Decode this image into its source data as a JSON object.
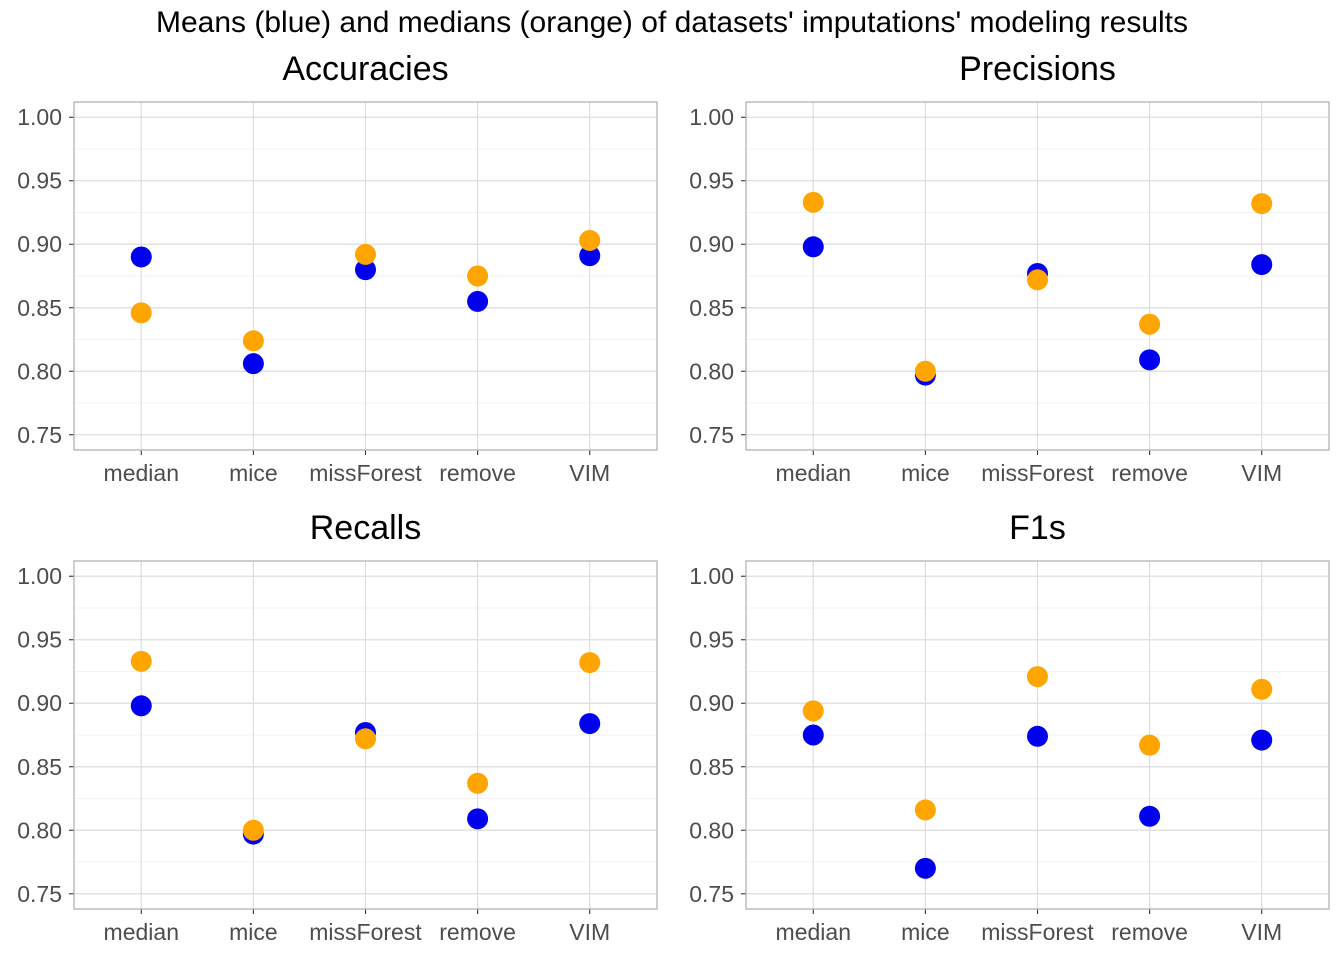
{
  "figure": {
    "title": "Means (blue) and medians (orange) of datasets' imputations' modeling results"
  },
  "colors": {
    "mean": "#0000ee",
    "median": "#ffa500"
  },
  "chart_data": [
    {
      "type": "scatter",
      "title": "Accuracies",
      "categories": [
        "median",
        "mice",
        "missForest",
        "remove",
        "VIM"
      ],
      "ylim": [
        0.738,
        1.012
      ],
      "yticks": [
        "0.75",
        "0.80",
        "0.85",
        "0.90",
        "0.95",
        "1.00"
      ],
      "grid": true,
      "series": [
        {
          "color": "#0000ee",
          "values": [
            0.89,
            0.806,
            0.88,
            0.855,
            0.891
          ]
        },
        {
          "color": "#ffa500",
          "values": [
            0.846,
            0.824,
            0.892,
            0.875,
            0.903
          ]
        }
      ]
    },
    {
      "type": "scatter",
      "title": "Precisions",
      "categories": [
        "median",
        "mice",
        "missForest",
        "remove",
        "VIM"
      ],
      "ylim": [
        0.738,
        1.012
      ],
      "yticks": [
        "0.75",
        "0.80",
        "0.85",
        "0.90",
        "0.95",
        "1.00"
      ],
      "grid": true,
      "series": [
        {
          "color": "#0000ee",
          "values": [
            0.898,
            0.797,
            0.877,
            0.809,
            0.884
          ]
        },
        {
          "color": "#ffa500",
          "values": [
            0.933,
            0.8,
            0.872,
            0.837,
            0.932
          ]
        }
      ]
    },
    {
      "type": "scatter",
      "title": "Recalls",
      "categories": [
        "median",
        "mice",
        "missForest",
        "remove",
        "VIM"
      ],
      "ylim": [
        0.738,
        1.012
      ],
      "yticks": [
        "0.75",
        "0.80",
        "0.85",
        "0.90",
        "0.95",
        "1.00"
      ],
      "grid": true,
      "series": [
        {
          "color": "#0000ee",
          "values": [
            0.898,
            0.797,
            0.877,
            0.809,
            0.884
          ]
        },
        {
          "color": "#ffa500",
          "values": [
            0.933,
            0.8,
            0.872,
            0.837,
            0.932
          ]
        }
      ]
    },
    {
      "type": "scatter",
      "title": "F1s",
      "categories": [
        "median",
        "mice",
        "missForest",
        "remove",
        "VIM"
      ],
      "ylim": [
        0.738,
        1.012
      ],
      "yticks": [
        "0.75",
        "0.80",
        "0.85",
        "0.90",
        "0.95",
        "1.00"
      ],
      "grid": true,
      "series": [
        {
          "color": "#0000ee",
          "values": [
            0.875,
            0.77,
            0.874,
            0.811,
            0.871
          ]
        },
        {
          "color": "#ffa500",
          "values": [
            0.894,
            0.816,
            0.921,
            0.867,
            0.911
          ]
        }
      ]
    }
  ]
}
